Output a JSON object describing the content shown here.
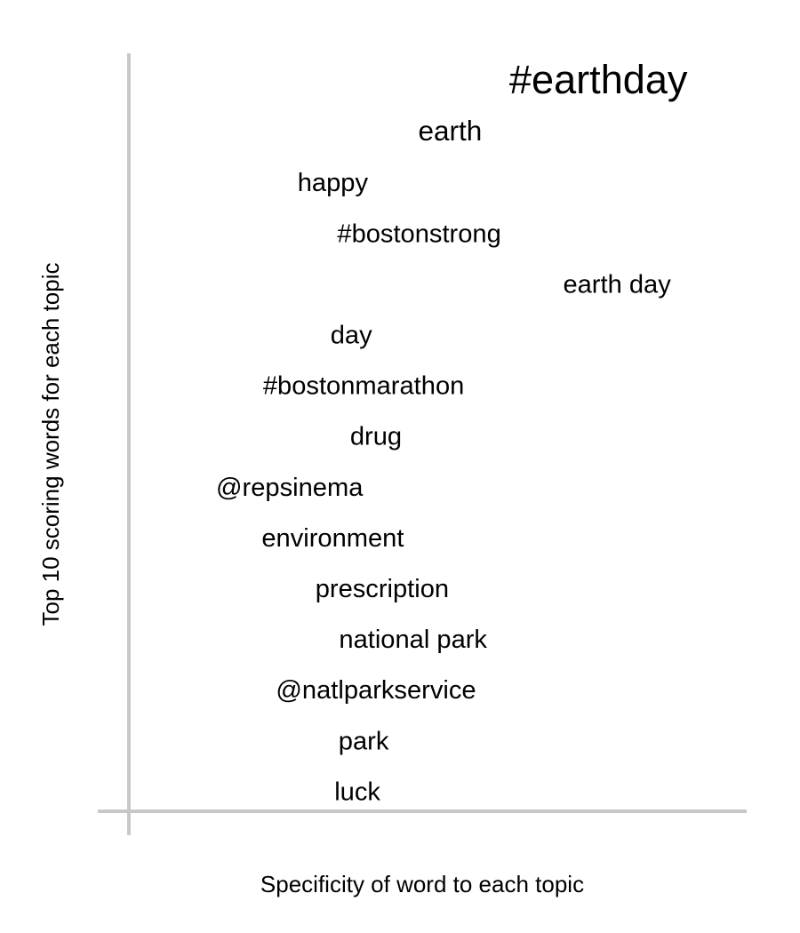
{
  "chart_data": {
    "type": "scatter",
    "title": "",
    "xlabel": "Specificity of word to each topic",
    "ylabel": "Top 10 scoring words for each topic",
    "grid": false,
    "legend": "none",
    "axis_color": "#c8c8c8",
    "text_color": "#000000",
    "points": [
      {
        "word": "#earthday",
        "specificity": 0.76,
        "rank": 1,
        "emphasis": 2.0
      },
      {
        "word": "earth",
        "specificity": 0.52,
        "rank": 2,
        "emphasis": 1.3
      },
      {
        "word": "happy",
        "specificity": 0.33,
        "rank": 3,
        "emphasis": 1.2
      },
      {
        "word": "#bostonstrong",
        "specificity": 0.47,
        "rank": 4,
        "emphasis": 1.2
      },
      {
        "word": "earth day",
        "specificity": 0.79,
        "rank": 5,
        "emphasis": 1.2
      },
      {
        "word": "day",
        "specificity": 0.36,
        "rank": 6,
        "emphasis": 1.2
      },
      {
        "word": "#bostonmarathon",
        "specificity": 0.38,
        "rank": 7,
        "emphasis": 1.2
      },
      {
        "word": "drug",
        "specificity": 0.4,
        "rank": 8,
        "emphasis": 1.2
      },
      {
        "word": "@repsinema",
        "specificity": 0.26,
        "rank": 9,
        "emphasis": 1.2
      },
      {
        "word": "environment",
        "specificity": 0.33,
        "rank": 10,
        "emphasis": 1.2
      },
      {
        "word": "prescription",
        "specificity": 0.41,
        "rank": 11,
        "emphasis": 1.2
      },
      {
        "word": "national park",
        "specificity": 0.46,
        "rank": 12,
        "emphasis": 1.2
      },
      {
        "word": "@natlparkservice",
        "specificity": 0.4,
        "rank": 13,
        "emphasis": 1.2
      },
      {
        "word": "park",
        "specificity": 0.38,
        "rank": 14,
        "emphasis": 1.2
      },
      {
        "word": "luck",
        "specificity": 0.37,
        "rank": 15,
        "emphasis": 1.2
      }
    ]
  }
}
